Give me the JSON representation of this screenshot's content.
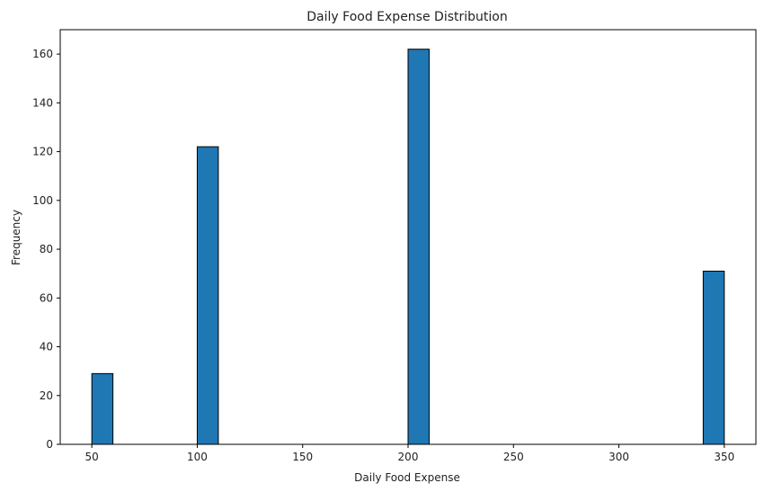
{
  "chart_data": {
    "type": "bar",
    "title": "Daily Food Expense Distribution",
    "xlabel": "Daily Food Expense",
    "ylabel": "Frequency",
    "xlim": [
      35,
      365
    ],
    "ylim": [
      0,
      170
    ],
    "x_ticks": [
      50,
      100,
      150,
      200,
      250,
      300,
      350
    ],
    "y_ticks": [
      0,
      20,
      40,
      60,
      80,
      100,
      120,
      140,
      160
    ],
    "bin_width": 10,
    "bins": [
      {
        "start": 50,
        "end": 60,
        "value": 29
      },
      {
        "start": 100,
        "end": 110,
        "value": 122
      },
      {
        "start": 200,
        "end": 210,
        "value": 162
      },
      {
        "start": 340,
        "end": 350,
        "value": 71
      }
    ],
    "grid": false,
    "bar_color": "#1f77b4",
    "edge_color": "#000000"
  }
}
